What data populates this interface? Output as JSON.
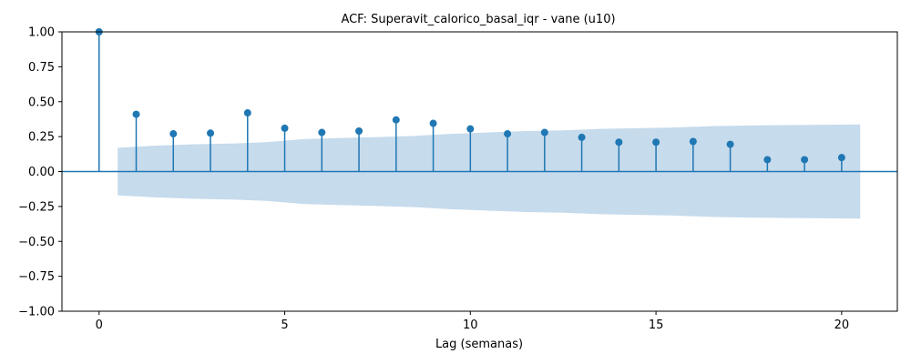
{
  "chart_data": {
    "type": "stem",
    "title": "ACF: Superavit_calorico_basal_iqr - vane (u10)",
    "xlabel": "Lag (semanas)",
    "ylabel": "",
    "xlim": [
      -1,
      21.5
    ],
    "ylim": [
      -1.0,
      1.0
    ],
    "xticks": [
      0,
      5,
      10,
      15,
      20
    ],
    "xtick_labels": [
      "0",
      "5",
      "10",
      "15",
      "20"
    ],
    "yticks": [
      -1.0,
      -0.75,
      -0.5,
      -0.25,
      0.0,
      0.25,
      0.5,
      0.75,
      1.0
    ],
    "ytick_labels": [
      "−1.00",
      "−0.75",
      "−0.50",
      "−0.25",
      "0.00",
      "0.25",
      "0.50",
      "0.75",
      "1.00"
    ],
    "lags": [
      0,
      1,
      2,
      3,
      4,
      5,
      6,
      7,
      8,
      9,
      10,
      11,
      12,
      13,
      14,
      15,
      16,
      17,
      18,
      19,
      20
    ],
    "acf": [
      1.0,
      0.41,
      0.27,
      0.275,
      0.42,
      0.31,
      0.28,
      0.29,
      0.37,
      0.345,
      0.305,
      0.27,
      0.28,
      0.245,
      0.21,
      0.21,
      0.215,
      0.195,
      0.085,
      0.085,
      0.1
    ],
    "confidence_band": {
      "x": [
        0.5,
        1.5,
        2.5,
        3.5,
        4.5,
        5.5,
        6.5,
        7.5,
        8.5,
        9.5,
        10.5,
        11.5,
        12.5,
        13.5,
        14.5,
        15.5,
        16.5,
        17.5,
        18.5,
        19.5,
        20.5
      ],
      "upper": [
        0.17,
        0.185,
        0.195,
        0.2,
        0.21,
        0.232,
        0.24,
        0.247,
        0.255,
        0.27,
        0.28,
        0.29,
        0.295,
        0.305,
        0.31,
        0.315,
        0.325,
        0.33,
        0.332,
        0.335,
        0.337
      ]
    },
    "colors": {
      "stem": "#1f77b4",
      "band": "#c6dbec",
      "zero_line": "#1f77b4"
    },
    "grid": false
  }
}
